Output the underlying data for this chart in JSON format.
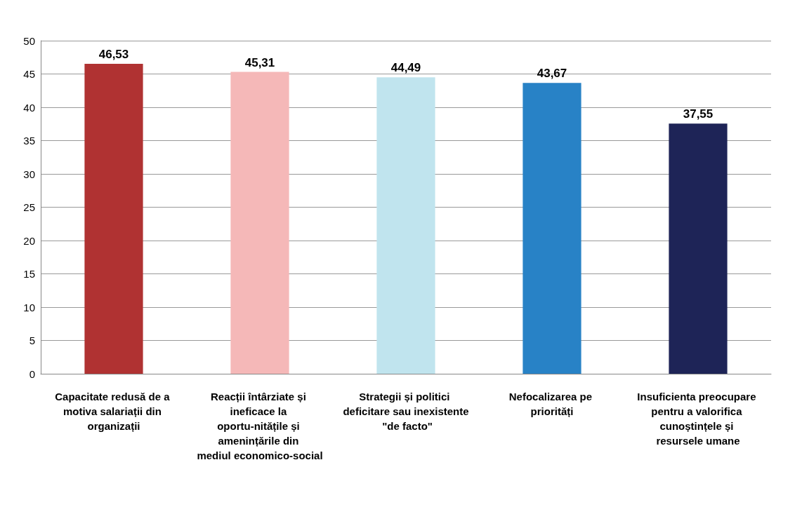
{
  "chart_data": {
    "type": "bar",
    "categories": [
      "Capacitate redusă de a motiva salariații din organizații",
      "Reacții întârziate și ineficace la oportu-nitățile și amenințările din mediul economico-social",
      "Strategii și politici deficitare sau inexistente \"de facto\"",
      "Nefocalizarea pe priorități",
      "Insuficienta preocupare pentru a valorifica cunoștințele și resursele umane"
    ],
    "values": [
      46.53,
      45.31,
      44.49,
      43.67,
      37.55
    ],
    "colors": [
      "#b03232",
      "#f5b8b8",
      "#c0e4ee",
      "#2882c6",
      "#1e2457"
    ],
    "value_labels": [
      "46,53",
      "45,31",
      "44,49",
      "43,67",
      "37,55"
    ],
    "ylim": [
      0,
      50
    ],
    "yticks": [
      0,
      5,
      10,
      15,
      20,
      25,
      30,
      35,
      40,
      45,
      50
    ],
    "grid": "y"
  }
}
